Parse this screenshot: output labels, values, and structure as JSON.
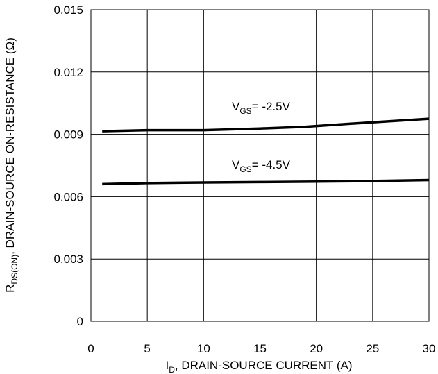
{
  "chart_data": {
    "type": "line",
    "xlabel": {
      "main": "I",
      "sub": "D",
      "rest": ", DRAIN-SOURCE CURRENT (A)"
    },
    "ylabel": {
      "main": "R",
      "sub": "DS(ON)",
      "rest": ", DRAIN-SOURCE ON-RESISTANCE (Ω)"
    },
    "xlim": [
      0,
      30
    ],
    "ylim": [
      0,
      0.015
    ],
    "xticks": [
      0,
      5,
      10,
      15,
      20,
      25,
      30
    ],
    "xtick_labels": [
      "0",
      "5",
      "10",
      "15",
      "20",
      "25",
      "30"
    ],
    "yticks": [
      0,
      0.003,
      0.006,
      0.009,
      0.012,
      0.015
    ],
    "ytick_labels": [
      "0",
      "0.003",
      "0.006",
      "0.009",
      "0.012",
      "0.015"
    ],
    "grid": true,
    "series": [
      {
        "label": {
          "main": "V",
          "sub": "GS",
          "rest": "= -2.5V"
        },
        "x": [
          1,
          5,
          10,
          15,
          19,
          20,
          25,
          30
        ],
        "y": [
          0.00915,
          0.0092,
          0.0092,
          0.00928,
          0.00936,
          0.0094,
          0.00958,
          0.00975
        ]
      },
      {
        "label": {
          "main": "V",
          "sub": "GS",
          "rest": "= -4.5V"
        },
        "x": [
          1,
          5,
          10,
          15,
          20,
          25,
          30
        ],
        "y": [
          0.0066,
          0.00665,
          0.00668,
          0.0067,
          0.00672,
          0.00675,
          0.0068
        ]
      }
    ]
  }
}
